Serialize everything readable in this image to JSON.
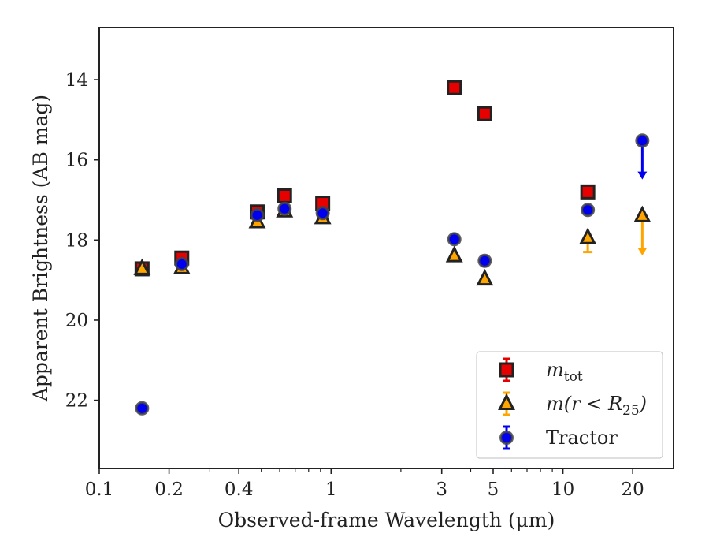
{
  "chart_data": {
    "type": "scatter",
    "xlabel": "Observed-frame Wavelength (μm)",
    "ylabel": "Apparent Brightness (AB mag)",
    "xscale": "log",
    "xlim": [
      0.1,
      30
    ],
    "ylim": [
      23.7,
      12.7
    ],
    "y_inverted": true,
    "x_ticks": [
      {
        "value": 0.1,
        "label": "0.1"
      },
      {
        "value": 0.2,
        "label": "0.2"
      },
      {
        "value": 0.4,
        "label": "0.4"
      },
      {
        "value": 1,
        "label": "1"
      },
      {
        "value": 3,
        "label": "3"
      },
      {
        "value": 5,
        "label": "5"
      },
      {
        "value": 10,
        "label": "10"
      },
      {
        "value": 20,
        "label": "20"
      }
    ],
    "y_ticks": [
      {
        "value": 14,
        "label": "14"
      },
      {
        "value": 16,
        "label": "16"
      },
      {
        "value": 18,
        "label": "18"
      },
      {
        "value": 20,
        "label": "20"
      },
      {
        "value": 22,
        "label": "22"
      }
    ],
    "grid": false,
    "legend_position": "bottom-right",
    "series": [
      {
        "name": "m_tot",
        "legend_main": "m",
        "legend_sub": "tot",
        "marker": "square",
        "color": "#e60000",
        "points": [
          {
            "x": 0.153,
            "y": 18.72
          },
          {
            "x": 0.227,
            "y": 18.45
          },
          {
            "x": 0.48,
            "y": 17.3
          },
          {
            "x": 0.63,
            "y": 16.9
          },
          {
            "x": 0.92,
            "y": 17.08
          },
          {
            "x": 3.4,
            "y": 14.2
          },
          {
            "x": 4.6,
            "y": 14.85
          },
          {
            "x": 12.8,
            "y": 16.8
          }
        ]
      },
      {
        "name": "m(r < R_25)",
        "legend_main": "m(r < R",
        "legend_sub": "25",
        "legend_tail": ")",
        "marker": "triangle",
        "color": "#ffa500",
        "points": [
          {
            "x": 0.153,
            "y": 18.72
          },
          {
            "x": 0.227,
            "y": 18.7
          },
          {
            "x": 0.48,
            "y": 17.55
          },
          {
            "x": 0.63,
            "y": 17.28
          },
          {
            "x": 0.92,
            "y": 17.45
          },
          {
            "x": 3.4,
            "y": 18.4
          },
          {
            "x": 4.6,
            "y": 18.98
          },
          {
            "x": 12.8,
            "y": 17.95,
            "err_low": 0.35
          },
          {
            "x": 22.0,
            "y": 17.4,
            "upper_limit": true,
            "arrow_to": 18.35
          }
        ]
      },
      {
        "name": "Tractor",
        "legend_main": "Tractor",
        "marker": "circle",
        "color": "#0000ee",
        "points": [
          {
            "x": 0.153,
            "y": 22.2
          },
          {
            "x": 0.227,
            "y": 18.6
          },
          {
            "x": 0.48,
            "y": 17.38
          },
          {
            "x": 0.63,
            "y": 17.22
          },
          {
            "x": 0.92,
            "y": 17.33
          },
          {
            "x": 3.4,
            "y": 17.98
          },
          {
            "x": 4.6,
            "y": 18.52
          },
          {
            "x": 12.8,
            "y": 17.25
          },
          {
            "x": 22.0,
            "y": 15.52,
            "upper_limit": true,
            "arrow_to": 16.45
          }
        ]
      }
    ]
  }
}
